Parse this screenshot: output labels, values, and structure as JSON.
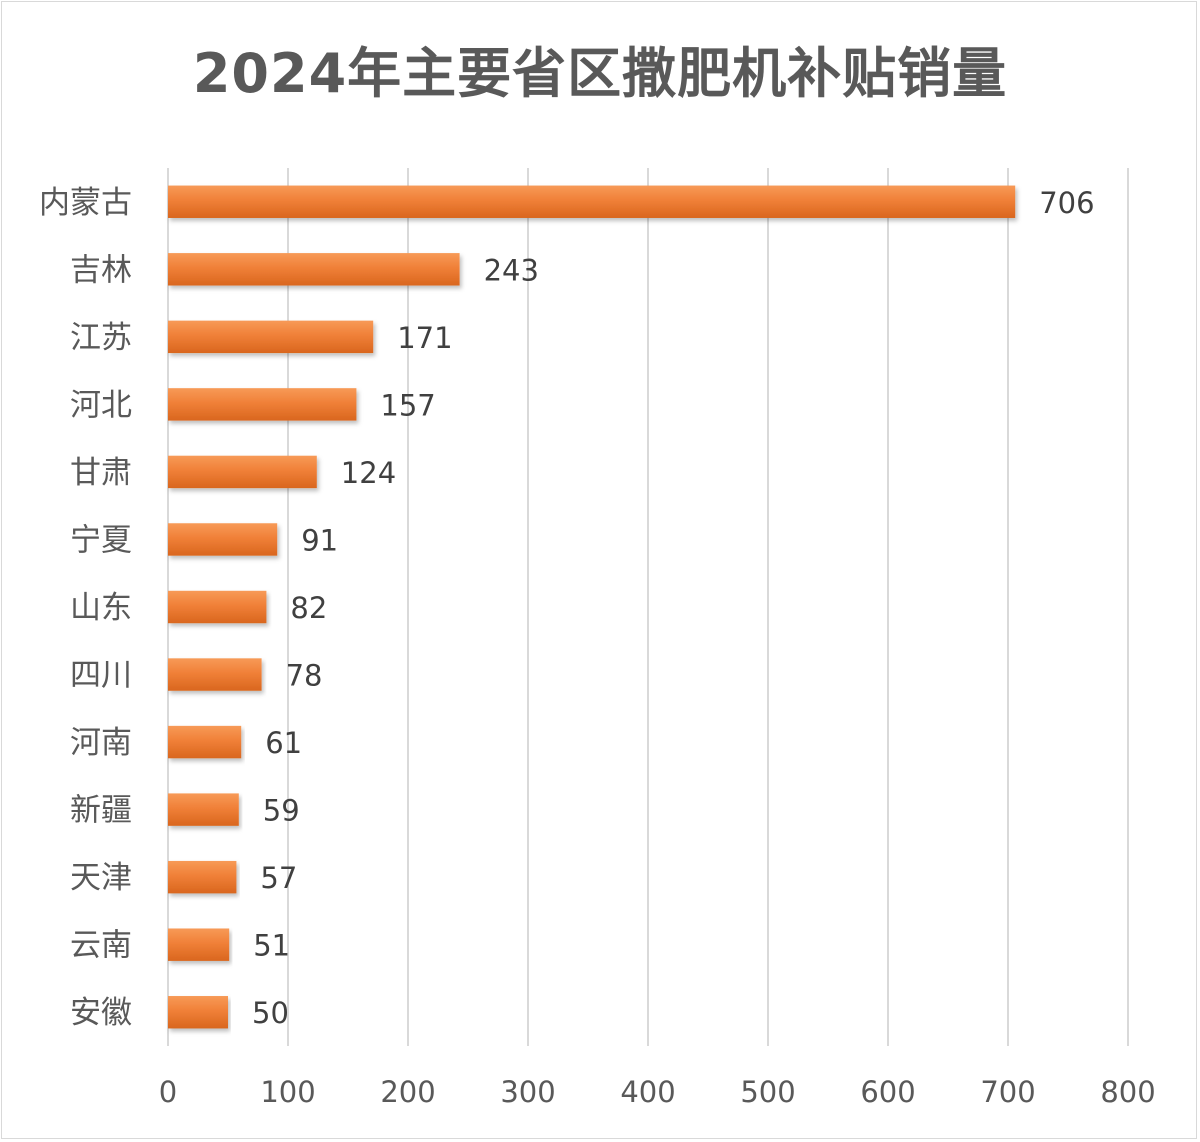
{
  "chart_data": {
    "type": "bar",
    "orientation": "horizontal",
    "title": "2024年主要省区撒肥机补贴销量",
    "categories": [
      "内蒙古",
      "吉林",
      "江苏",
      "河北",
      "甘肃",
      "宁夏",
      "山东",
      "四川",
      "河南",
      "新疆",
      "天津",
      "云南",
      "安徽"
    ],
    "values": [
      706,
      243,
      171,
      157,
      124,
      91,
      82,
      78,
      61,
      59,
      57,
      51,
      50
    ],
    "xlim": [
      0,
      800
    ],
    "x_ticks": [
      0,
      100,
      200,
      300,
      400,
      500,
      600,
      700,
      800
    ],
    "grid": true,
    "legend": "none",
    "bar_color": "#ED7D31",
    "data_labels": true
  }
}
